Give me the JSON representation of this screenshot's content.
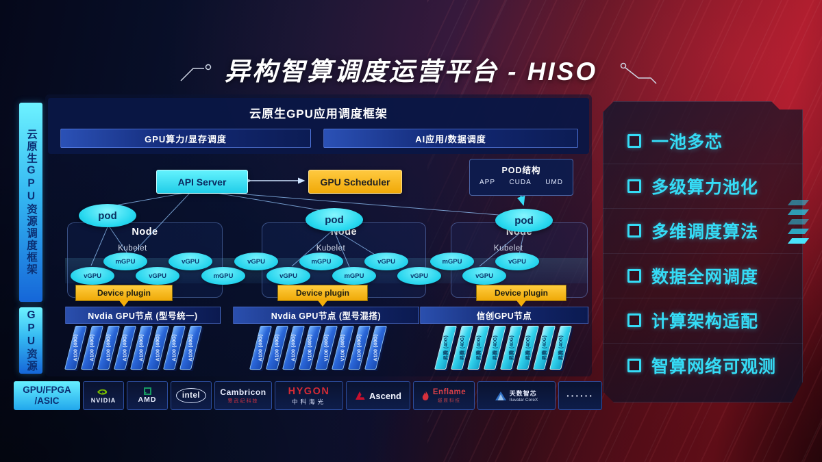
{
  "title": "异构智算调度运营平台 - HISO",
  "sidebar": {
    "scheduling_framework": "云原生GPU资源调度框架",
    "gpu_resources": "GPU资源"
  },
  "framework": {
    "title": "云原生GPU应用调度框架",
    "compute_bar": "GPU算力/显存调度",
    "ai_bar": "AI应用/数据调度"
  },
  "control": {
    "api_server": "API Server",
    "gpu_scheduler": "GPU Scheduler"
  },
  "pod_structure": {
    "title": "POD结构",
    "items": [
      "APP",
      "CUDA",
      "UMD"
    ]
  },
  "node_label": "Node",
  "kubelet_label": "Kubelet",
  "pod_label": "pod",
  "device_plugin_label": "Device plugin",
  "gpu_ellipses": [
    "vGPU",
    "mGPU",
    "vGPU",
    "vGPU",
    "mGPU",
    "vGPU",
    "vGPU",
    "mGPU",
    "mGPU",
    "vGPU",
    "vGPU",
    "mGPU",
    "vGPU",
    "vGPU"
  ],
  "gpu_groups": [
    {
      "title": "Nvdia GPU节点 (型号统一)",
      "theme": "blue",
      "cards": [
        "A100 (40G)",
        "A100 (40G)",
        "A100 (40G)",
        "A100 (40G)",
        "A100 (40G)",
        "A100 (40G)",
        "A100 (40G)",
        "A100 (40G)"
      ]
    },
    {
      "title": "Nvdia GPU节点 (型号混搭)",
      "theme": "blue",
      "cards": [
        "A100 (40G)",
        "A100 (40G)",
        "A100 (40G)",
        "V100 (40G)",
        "V100 (40G)",
        "V100 (40G)",
        "A100 (40G)",
        "A100 (40G)"
      ]
    },
    {
      "title": "信创GPU节点",
      "theme": "cyan",
      "cards": [
        "昇腾 (40G)",
        "昇腾 (40G)",
        "昇腾 (40G)",
        "昇腾 (40G)",
        "昇腾 (40G)",
        "昇腾 (40G)",
        "昇腾 (40G)",
        "昇腾 (40G)"
      ]
    }
  ],
  "hardware": {
    "label": "GPU/FPGA\n/ASIC",
    "vendors": [
      {
        "id": "nvidia",
        "name": "NVIDIA"
      },
      {
        "id": "amd",
        "name": "AMD"
      },
      {
        "id": "intel",
        "name": "intel"
      },
      {
        "id": "cambricon",
        "name": "Cambricon",
        "sub": "寒武纪科技"
      },
      {
        "id": "hygon",
        "name": "HYGON",
        "sub": "中科海光"
      },
      {
        "id": "ascend",
        "name": "Ascend"
      },
      {
        "id": "enflame",
        "name": "Enflame",
        "sub": "燧原科技"
      },
      {
        "id": "iluvatar",
        "name": "天数智芯",
        "sub": "Iluvatar CoreX"
      },
      {
        "id": "dots",
        "name": "······"
      }
    ]
  },
  "features": [
    "一池多芯",
    "多级算力池化",
    "多维调度算法",
    "数据全网调度",
    "计算架构适配",
    "智算网络可观测"
  ],
  "colors": {
    "accent_cyan": "#2ee2f4",
    "accent_yellow": "#f5b612",
    "panel_navy": "#0c1c50",
    "bg_red": "#8e1424",
    "card_blue": "#2a66d8",
    "nvidia_green": "#76b900"
  }
}
